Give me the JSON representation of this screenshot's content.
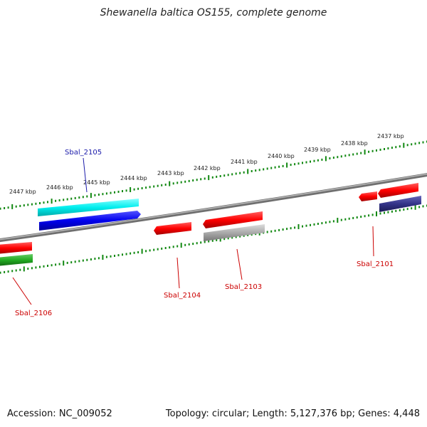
{
  "title": "Shewanella baltica OS155, complete genome",
  "footer": {
    "accession": "Accession: NC_009052",
    "summary": "Topology: circular; Length: 5,127,376 bp; Genes: 4,448"
  },
  "ticks": [
    "2437 kbp",
    "2438 kbp",
    "2439 kbp",
    "2440 kbp",
    "2441 kbp",
    "2442 kbp",
    "2443 kbp",
    "2444 kbp",
    "2445 kbp",
    "2446 kbp",
    "2447 kbp"
  ],
  "genes": [
    {
      "id": "Sbal_2105",
      "color": "#1a1aaa"
    },
    {
      "id": "Sbal_2106",
      "color": "#cc0000"
    },
    {
      "id": "Sbal_2104",
      "color": "#cc0000"
    },
    {
      "id": "Sbal_2103",
      "color": "#cc0000"
    },
    {
      "id": "Sbal_2101",
      "color": "#cc0000"
    }
  ],
  "colors": {
    "backbone": "#888888",
    "tick": "#118811",
    "forward_gene": "#ff0000",
    "cds_blue": "#0000ee",
    "cds_cyan": "#00eeee",
    "cds_gray": "#aaaaaa",
    "cds_navy": "#333388",
    "cds_green": "#22aa22"
  }
}
